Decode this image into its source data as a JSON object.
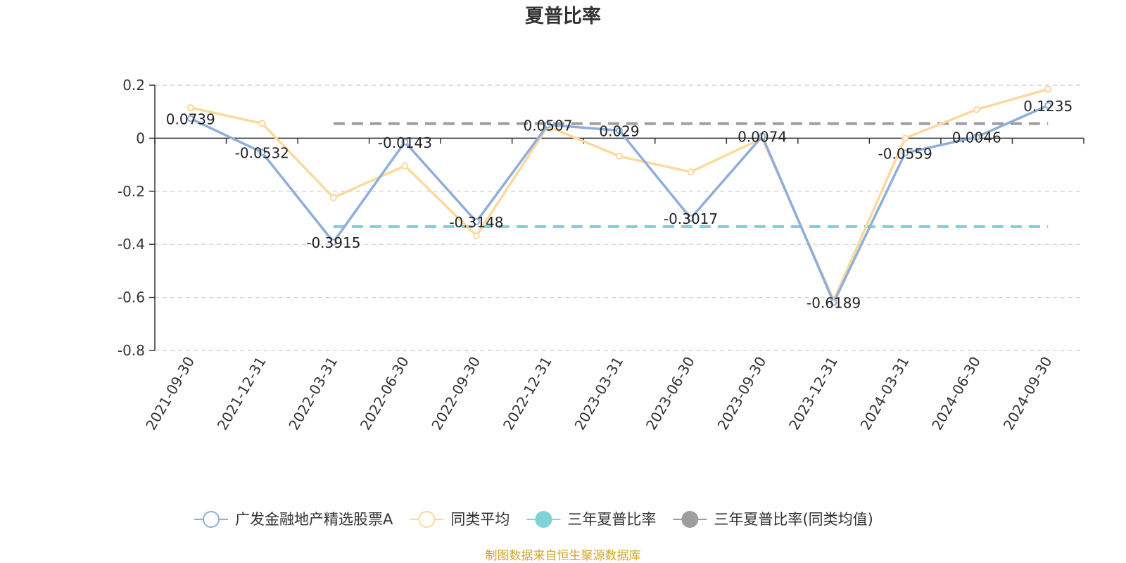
{
  "chart_data": {
    "type": "line",
    "title": "夏普比率",
    "categories": [
      "2021-09-30",
      "2021-12-31",
      "2022-03-31",
      "2022-06-30",
      "2022-09-30",
      "2022-12-31",
      "2023-03-31",
      "2023-06-30",
      "2023-09-30",
      "2023-12-31",
      "2024-03-31",
      "2024-06-30",
      "2024-09-30"
    ],
    "series": [
      {
        "name": "广发金融地产精选股票A",
        "color": "#8eaedb",
        "values": [
          0.0739,
          -0.0532,
          -0.3915,
          -0.0143,
          -0.3148,
          0.0507,
          0.029,
          -0.3017,
          0.0074,
          -0.6189,
          -0.0559,
          0.0046,
          0.1235
        ],
        "labels": [
          "0.0739",
          "-0.0532",
          "-0.3915",
          "-0.0143",
          "-0.3148",
          "0.0507",
          "0.029",
          "-0.3017",
          "0.0074",
          "-0.6189",
          "-0.0559",
          "0.0046",
          "0.1235"
        ]
      },
      {
        "name": "同类平均",
        "color": "#fdd99b",
        "values": [
          0.115,
          0.056,
          -0.224,
          -0.104,
          -0.368,
          0.045,
          -0.068,
          -0.127,
          0.0,
          -0.61,
          0.0,
          0.108,
          0.185
        ]
      }
    ],
    "reference_lines": [
      {
        "name": "三年夏普比率",
        "color": "#7fd3d9",
        "value": -0.333
      },
      {
        "name": "三年夏普比率(同类均值)",
        "color": "#9e9e9e",
        "value": 0.055
      }
    ],
    "ylim": [
      -0.8,
      0.2
    ],
    "yticks": [
      0.2,
      0,
      -0.2,
      -0.4,
      -0.6,
      -0.8
    ],
    "ytick_labels": [
      "0.2",
      "0",
      "-0.2",
      "-0.4",
      "-0.6",
      "-0.8"
    ],
    "grid": true,
    "legend_position": "bottom"
  },
  "source_note": "制图数据来自恒生聚源数据库"
}
